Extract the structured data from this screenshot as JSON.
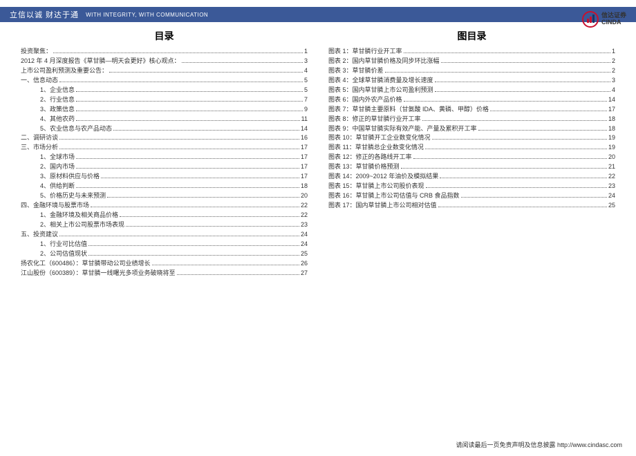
{
  "header": {
    "slogan_cn": "立信以诚  财达于通",
    "slogan_en": "WITH INTEGRITY, WITH COMMUNICATION",
    "logo_cn": "信达证券",
    "logo_en": "CINDA",
    "bar_color": "#3b5998"
  },
  "toc": {
    "title": "目录",
    "items": [
      {
        "t": "投资聚焦：",
        "p": "1",
        "i": 0
      },
      {
        "t": "2012 年 4 月深度报告《草甘膦—明天会更好》核心观点：",
        "p": "3",
        "i": 0
      },
      {
        "t": "上市公司盈利预测及重要公告：",
        "p": "4",
        "i": 0
      },
      {
        "t": "一、信息动态",
        "p": "5",
        "i": 0
      },
      {
        "t": "1、企业信息",
        "p": "5",
        "i": 1
      },
      {
        "t": "2、行业信息",
        "p": "7",
        "i": 1
      },
      {
        "t": "3、政策信息",
        "p": "9",
        "i": 1
      },
      {
        "t": "4、其他农药",
        "p": "11",
        "i": 1
      },
      {
        "t": "5、农业信息与农产品动态",
        "p": "14",
        "i": 1
      },
      {
        "t": "二、调研访谈",
        "p": "16",
        "i": 0
      },
      {
        "t": "三、市场分析",
        "p": "17",
        "i": 0
      },
      {
        "t": "1、全球市场",
        "p": "17",
        "i": 1
      },
      {
        "t": "2、国内市场",
        "p": "17",
        "i": 1
      },
      {
        "t": "3、原材料供应与价格",
        "p": "17",
        "i": 1
      },
      {
        "t": "4、供给判断",
        "p": "18",
        "i": 1
      },
      {
        "t": "5、价格历史与未来预测",
        "p": "20",
        "i": 1
      },
      {
        "t": "四、金融环境与股票市场",
        "p": "22",
        "i": 0
      },
      {
        "t": "1、金融环境及相关商品价格",
        "p": "22",
        "i": 1
      },
      {
        "t": "2、相关上市公司股票市场表现",
        "p": "23",
        "i": 1
      },
      {
        "t": "五、投资建议",
        "p": "24",
        "i": 0
      },
      {
        "t": "1、行业可比估值",
        "p": "24",
        "i": 1
      },
      {
        "t": "2、公司估值现状",
        "p": "25",
        "i": 1
      },
      {
        "t": "扬农化工（600486）：草甘膦带动公司业绩增长",
        "p": "26",
        "i": 0
      },
      {
        "t": "江山股份（600389）：草甘膦一线曙光多项业务破晓将至",
        "p": "27",
        "i": 0
      }
    ]
  },
  "fig": {
    "title": "图目录",
    "items": [
      {
        "t": "图表 1：草甘膦行业开工率",
        "p": "1"
      },
      {
        "t": "图表 2：国内草甘膦价格及同步环比涨幅",
        "p": "2"
      },
      {
        "t": "图表 3：草甘膦价差",
        "p": "2"
      },
      {
        "t": "图表 4：全球草甘膦消费量及增长速度",
        "p": "3"
      },
      {
        "t": "图表 5：国内草甘膦上市公司盈利预测",
        "p": "4"
      },
      {
        "t": "图表 6：国内外农产品价格",
        "p": "14"
      },
      {
        "t": "图表 7：草甘膦主要原料（甘氨酸 IDA、黄磷、甲醇）价格",
        "p": "17"
      },
      {
        "t": "图表 8：修正的草甘膦行业开工率",
        "p": "18"
      },
      {
        "t": "图表 9：中国草甘膦实际有效产能、产量及累积开工率",
        "p": "18"
      },
      {
        "t": "图表 10：草甘膦开工企业数变化情况",
        "p": "19"
      },
      {
        "t": "图表 11：草甘膦总企业数变化情况",
        "p": "19"
      },
      {
        "t": "图表 12：修正的各路线开工率",
        "p": "20"
      },
      {
        "t": "图表 13：草甘膦价格预测",
        "p": "21"
      },
      {
        "t": "图表 14：2009~2012 年油价及模拟结果",
        "p": "22"
      },
      {
        "t": "图表 15：草甘膦上市公司股价表现",
        "p": "23"
      },
      {
        "t": "图表 16：草甘膦上市公司估值与 CRB 食品指数",
        "p": "24"
      },
      {
        "t": "图表 17：国内草甘膦上市公司相对估值",
        "p": "25"
      }
    ]
  },
  "footer": {
    "text": "请阅读最后一页免责声明及信息披露  http://www.cindasc.com"
  }
}
